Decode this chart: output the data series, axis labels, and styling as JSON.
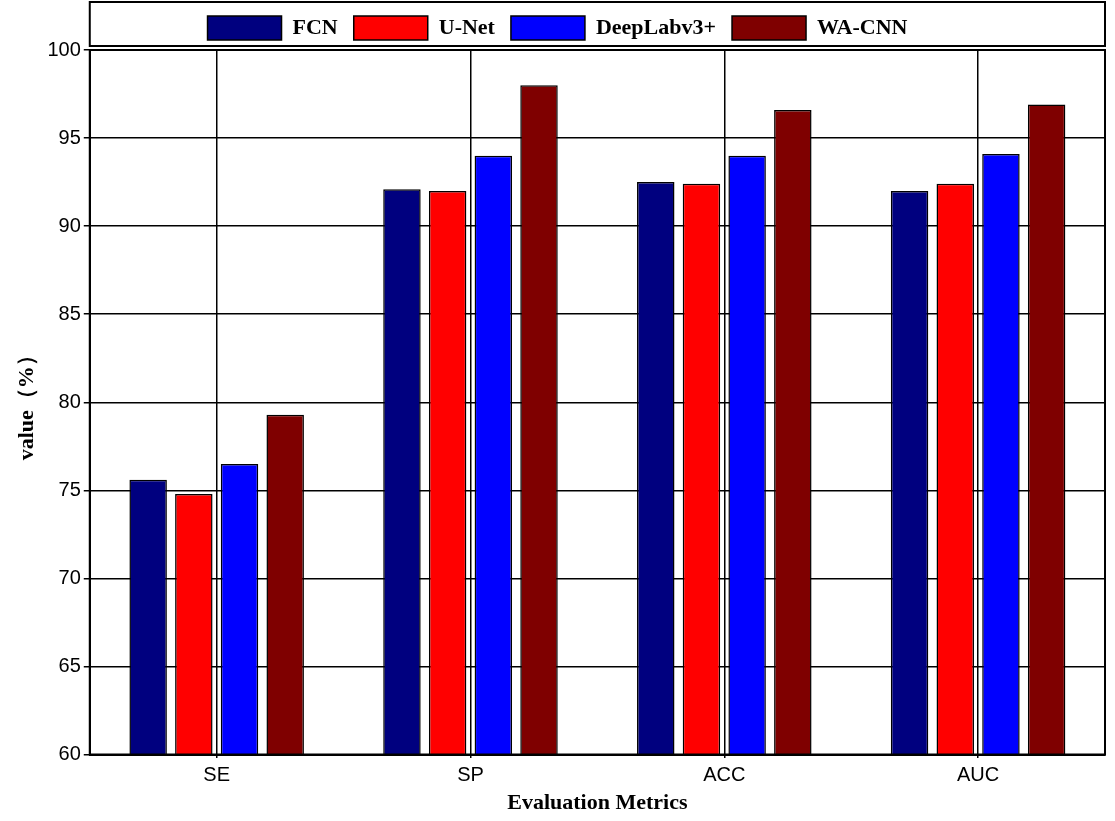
{
  "chart_data": {
    "type": "bar",
    "xlabel": "Evaluation Metrics",
    "ylabel": "value（%）",
    "categories": [
      "SE",
      "SP",
      "ACC",
      "AUC"
    ],
    "series": [
      {
        "name": "FCN",
        "color": "#00007f",
        "values": [
          75.6,
          92.1,
          92.5,
          92.0
        ]
      },
      {
        "name": "U-Net",
        "color": "#ff0000",
        "values": [
          74.8,
          92.0,
          92.4,
          92.4
        ]
      },
      {
        "name": "DeepLabv3+",
        "color": "#0000ff",
        "values": [
          76.5,
          94.0,
          94.0,
          94.1
        ]
      },
      {
        "name": "WA-CNN",
        "color": "#7f0000",
        "values": [
          79.3,
          98.0,
          96.6,
          96.9
        ]
      }
    ],
    "ylim": [
      60,
      100
    ],
    "yticks": [
      60,
      65,
      70,
      75,
      80,
      85,
      90,
      95,
      100
    ],
    "grid": true,
    "legend": "top"
  }
}
